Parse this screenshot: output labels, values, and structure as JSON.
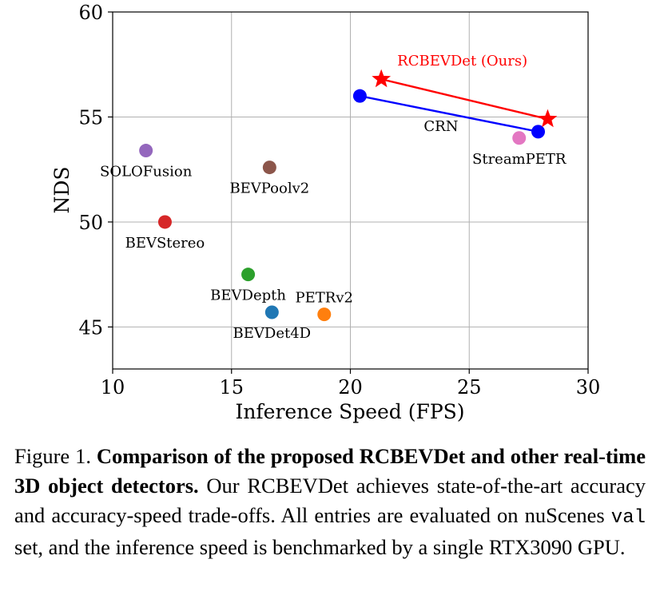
{
  "chart_data": {
    "type": "scatter",
    "xlabel": "Inference Speed (FPS)",
    "ylabel": "NDS",
    "xlim": [
      10,
      30
    ],
    "ylim": [
      43,
      60
    ],
    "xticks": [
      10,
      15,
      20,
      25,
      30
    ],
    "yticks": [
      45,
      50,
      55,
      60
    ],
    "grid": true,
    "points": [
      {
        "name": "SOLOFusion",
        "x": 11.4,
        "y": 53.4,
        "color": "#9467bd",
        "marker": "circle",
        "label_pos": "below"
      },
      {
        "name": "BEVStereo",
        "x": 12.2,
        "y": 50.0,
        "color": "#d62728",
        "marker": "circle",
        "label_pos": "below"
      },
      {
        "name": "BEVPoolv2",
        "x": 16.6,
        "y": 52.6,
        "color": "#8c564b",
        "marker": "circle",
        "label_pos": "below"
      },
      {
        "name": "BEVDepth",
        "x": 15.7,
        "y": 47.5,
        "color": "#2ca02c",
        "marker": "circle",
        "label_pos": "below"
      },
      {
        "name": "BEVDet4D",
        "x": 16.7,
        "y": 45.7,
        "color": "#1f77b4",
        "marker": "circle",
        "label_pos": "below"
      },
      {
        "name": "PETRv2",
        "x": 18.9,
        "y": 45.6,
        "color": "#ff7f0e",
        "marker": "circle",
        "label_pos": "above"
      },
      {
        "name": "StreamPETR",
        "x": 27.1,
        "y": 54.0,
        "color": "#e377c2",
        "marker": "circle",
        "label_pos": "below"
      }
    ],
    "series": [
      {
        "name": "CRN",
        "x": [
          20.4,
          27.9
        ],
        "y": [
          56.0,
          54.3
        ],
        "color": "#0000ff",
        "marker": "circle"
      },
      {
        "name": "RCBEVDet (Ours)",
        "x": [
          21.3,
          28.3
        ],
        "y": [
          56.8,
          54.9
        ],
        "color": "#ff0000",
        "marker": "star"
      }
    ]
  },
  "caption": {
    "prefix": "Figure 1.",
    "bold": "Comparison of the proposed RCBEVDet and other real-time 3D object detectors.",
    "text1": "Our RCBEVDet achieves state-of-the-art accuracy and accuracy-speed trade-offs. All entries are evaluated on nuScenes",
    "code": "val",
    "text2": "set, and the inference speed is benchmarked by a single RTX3090 GPU."
  }
}
